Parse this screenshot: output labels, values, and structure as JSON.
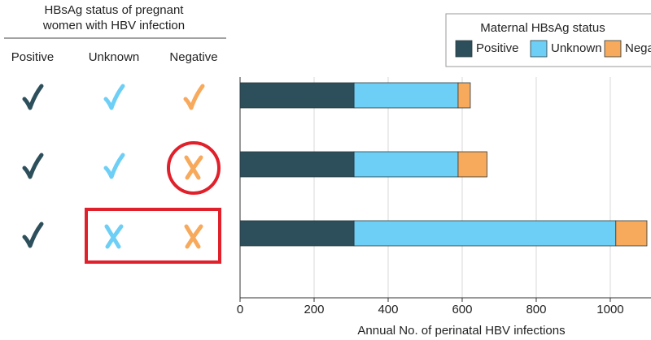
{
  "chart_data": {
    "type": "stacked-barh",
    "status_panel": {
      "title": [
        "HBsAg status of pregnant",
        "women with HBV infection"
      ],
      "columns": [
        "Positive",
        "Unknown",
        "Negative"
      ]
    },
    "legend_title": "Maternal HBsAg status",
    "legend": "top-right",
    "categories": [
      null,
      null,
      null
    ],
    "series": [
      {
        "name": "Positive",
        "color": "#2d4f5c",
        "values": [
          308,
          308,
          308
        ]
      },
      {
        "name": "Unknown",
        "color": "#6dcff6",
        "values": [
          281,
          281,
          707
        ]
      },
      {
        "name": "Negative",
        "color": "#f7a95c",
        "values": [
          33,
          78,
          84
        ]
      }
    ],
    "xlabel": "Annual No. of perinatal HBV infections",
    "xlim": [
      0,
      1110
    ],
    "xticks": [
      0,
      200,
      400,
      600,
      800,
      1000
    ],
    "grid": true
  }
}
